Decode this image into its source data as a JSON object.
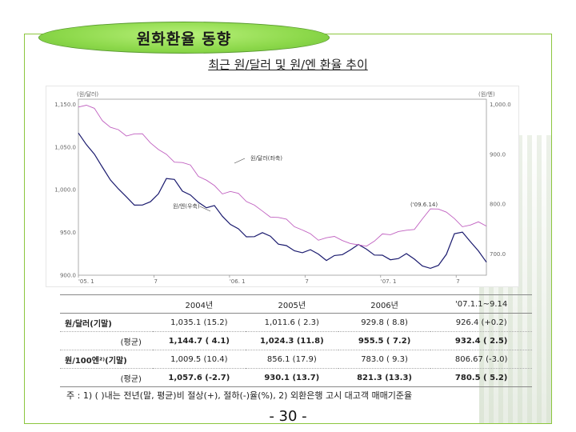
{
  "slide": {
    "title": "원화환율 동향",
    "note": "주 : 1) ( )내는 전년(말, 평균)비 절상(+), 절하(-)율(%), 2) 외환은행 고시 대고객 매매기준율",
    "page_number": "- 30 -"
  },
  "chart_data": {
    "type": "line",
    "title": "최근 원/달러 및 원/엔 환율 추이",
    "y_left_unit": "(원/달러)",
    "y_right_unit": "(원/엔)",
    "y_left_ticks": [
      "1,150.0",
      "1,050.0",
      "1,000.0",
      "950.0",
      "900.0"
    ],
    "y_right_ticks": [
      "1,000.0",
      "900.0",
      "800.0",
      "700.0"
    ],
    "x_ticks": [
      "'05. 1",
      "7",
      "'06. 1",
      "7",
      "'07. 1",
      "7"
    ],
    "annotations": [
      "원/달러(좌축)",
      "원/엔(우축)",
      "('09.6.14)"
    ],
    "series": [
      {
        "name": "원/달러(좌축)",
        "color": "#1a1a6e",
        "values": [
          1110,
          1100,
          1080,
          1060,
          1040,
          1020,
          1015,
          1010,
          1005,
          1010,
          1020,
          1035,
          1040,
          1030,
          1020,
          1010,
          1000,
          995,
          985,
          980,
          970,
          960,
          958,
          955,
          955,
          950,
          945,
          940,
          935,
          930,
          928,
          925,
          930,
          935,
          940,
          938,
          935,
          932,
          930,
          928,
          928,
          925,
          920,
          915,
          910,
          920,
          935,
          955,
          960,
          950,
          935,
          925
        ]
      },
      {
        "name": "원/엔(우축)",
        "color": "#c060c0",
        "values": [
          1000,
          995,
          985,
          975,
          965,
          958,
          950,
          945,
          940,
          935,
          925,
          915,
          905,
          895,
          885,
          875,
          870,
          860,
          850,
          845,
          835,
          830,
          825,
          815,
          810,
          800,
          790,
          785,
          780,
          775,
          770,
          765,
          760,
          760,
          755,
          755,
          760,
          760,
          765,
          770,
          775,
          780,
          790,
          800,
          810,
          815,
          808,
          800,
          795,
          790,
          788,
          785
        ]
      }
    ],
    "y_left_range": [
      900,
      1160
    ],
    "y_right_range": [
      700,
      1010
    ]
  },
  "table": {
    "columns": [
      "",
      "2004년",
      "2005년",
      "2006년",
      "'07.1.1~9.14"
    ],
    "rows": [
      {
        "label": "원/달러(기말)",
        "cells": [
          "1,035.1 (15.2)",
          "1,011.6 ( 2.3)",
          "929.8 ( 8.8)",
          "926.4 (+0.2)"
        ],
        "sub": false
      },
      {
        "label": "(평균)",
        "cells": [
          "1,144.7 ( 4.1)",
          "1,024.3 (11.8)",
          "955.5 ( 7.2)",
          "932.4 ( 2.5)"
        ],
        "sub": true
      },
      {
        "label": "원/100엔²⁾(기말)",
        "cells": [
          "1,009.5 (10.4)",
          "856.1 (17.9)",
          "783.0 ( 9.3)",
          "806.67 (-3.0)"
        ],
        "sub": false
      },
      {
        "label": "(평균)",
        "cells": [
          "1,057.6 (-2.7)",
          "930.1 (13.7)",
          "821.3 (13.3)",
          "780.5 ( 5.2)"
        ],
        "sub": true
      }
    ]
  }
}
